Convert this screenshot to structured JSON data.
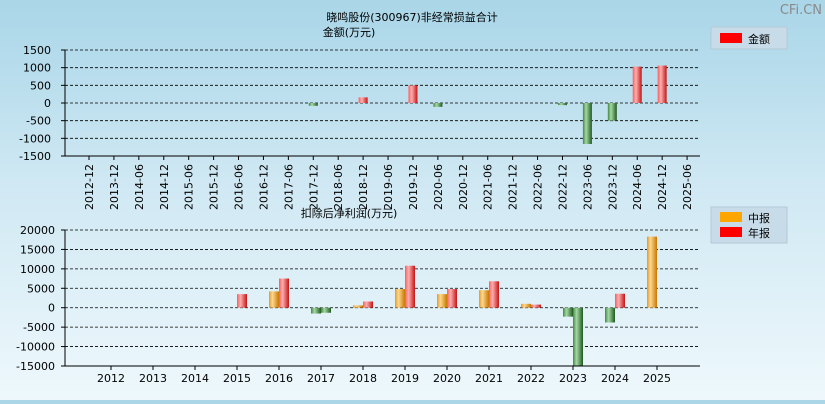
{
  "watermark": "CFi.CN",
  "chart_data": [
    {
      "type": "bar",
      "title_line1": "晓鸣股份(300967)非经常损益合计",
      "title_line2": "金额(万元)",
      "ylim": [
        -1500,
        1500
      ],
      "yticks": [
        1500,
        1000,
        500,
        0,
        -500,
        -1000,
        -1500
      ],
      "grid": true,
      "legend_position": "top-right",
      "categories": [
        "2012-12",
        "2013-12",
        "2014-06",
        "2014-12",
        "2015-06",
        "2015-12",
        "2016-06",
        "2016-12",
        "2017-06",
        "2017-12",
        "2018-06",
        "2018-12",
        "2019-06",
        "2019-12",
        "2020-06",
        "2020-12",
        "2021-06",
        "2021-12",
        "2022-06",
        "2022-12",
        "2023-06",
        "2023-12",
        "2024-06",
        "2024-12",
        "2025-06"
      ],
      "series": [
        {
          "name": "金额",
          "color": "#ff0000",
          "values": [
            null,
            null,
            null,
            null,
            null,
            null,
            null,
            null,
            null,
            -80,
            null,
            160,
            null,
            500,
            -110,
            null,
            null,
            null,
            null,
            -60,
            -1160,
            -500,
            1030,
            1060,
            null
          ]
        }
      ]
    },
    {
      "type": "bar",
      "title": "扣除后净利润(万元)",
      "ylim": [
        -15000,
        20000
      ],
      "yticks": [
        20000,
        15000,
        10000,
        5000,
        0,
        -5000,
        -10000,
        -15000
      ],
      "grid": true,
      "legend_position": "top-right",
      "categories": [
        "2012",
        "2013",
        "2014",
        "2015",
        "2016",
        "2017",
        "2018",
        "2019",
        "2020",
        "2021",
        "2022",
        "2023",
        "2024",
        "2025"
      ],
      "series": [
        {
          "name": "中报",
          "color": "#ffa500",
          "values": [
            null,
            null,
            null,
            null,
            4200,
            -1500,
            600,
            4800,
            3500,
            4500,
            1000,
            -2300,
            -3800,
            18300
          ]
        },
        {
          "name": "年报",
          "color": "#ff0000",
          "values": [
            null,
            null,
            null,
            3500,
            7500,
            -1300,
            1600,
            10800,
            4800,
            6800,
            800,
            -15000,
            3600,
            null
          ]
        }
      ]
    }
  ]
}
